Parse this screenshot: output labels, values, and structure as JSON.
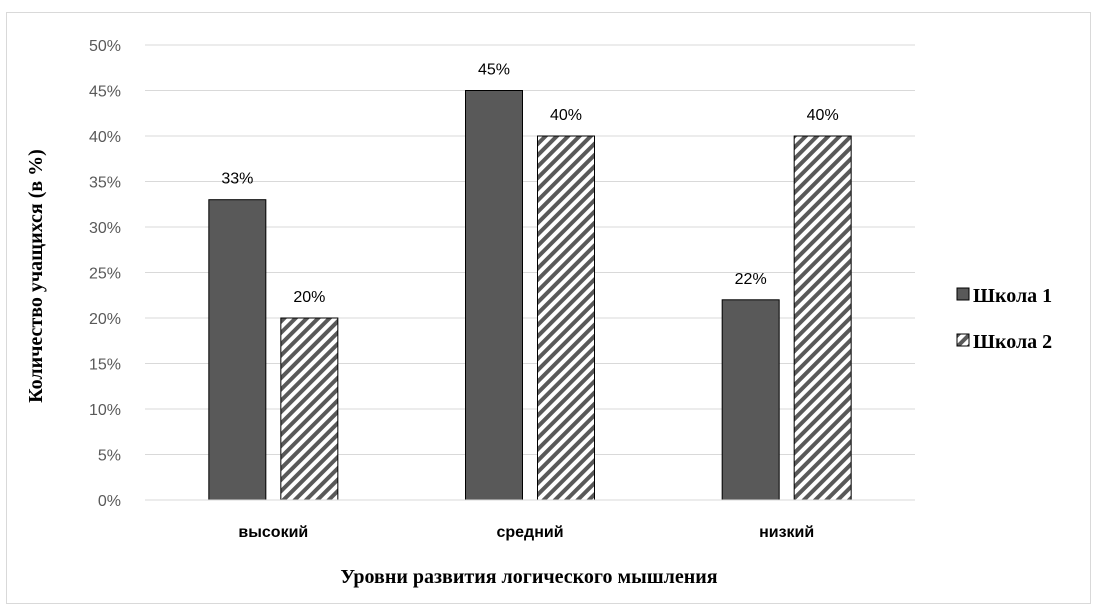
{
  "chart_data": {
    "type": "bar",
    "title": "",
    "xlabel": "Уровни развития логического мышления",
    "ylabel": "Количество учащихся (в %)",
    "categories": [
      "высокий",
      "средний",
      "низкий"
    ],
    "series": [
      {
        "name": "Школа 1",
        "values": [
          33,
          45,
          22
        ],
        "labels": [
          "33%",
          "45%",
          "22%"
        ],
        "fill": "solid",
        "color": "#595959"
      },
      {
        "name": "Школа 2",
        "values": [
          20,
          40,
          40
        ],
        "labels": [
          "20%",
          "40%",
          "40%"
        ],
        "fill": "diagonal-hatch",
        "color": "#595959"
      }
    ],
    "ylim": [
      0,
      50
    ],
    "yticks": [
      0,
      5,
      10,
      15,
      20,
      25,
      30,
      35,
      40,
      45,
      50
    ],
    "ytick_labels": [
      "0%",
      "5%",
      "10%",
      "15%",
      "20%",
      "25%",
      "30%",
      "35%",
      "40%",
      "45%",
      "50%"
    ],
    "grid": true,
    "legend_position": "right"
  }
}
